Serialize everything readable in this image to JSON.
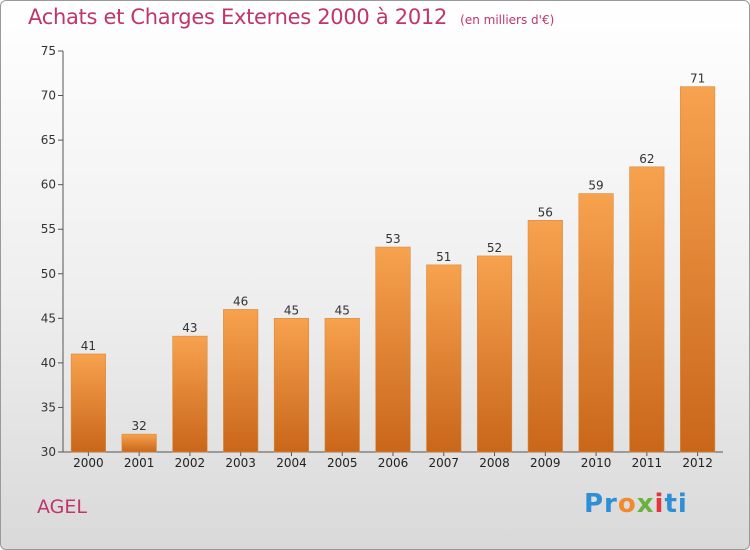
{
  "header": {
    "title": "Achats et Charges Externes 2000 à 2012",
    "unit": "(en milliers d'€)"
  },
  "footer": {
    "commune": "AGEL",
    "logo": [
      "Pr",
      "o",
      "x",
      "i",
      "ti"
    ]
  },
  "colors": {
    "bar_light": "#f7a24e",
    "bar_dark": "#c9661a",
    "title": "#c0356b"
  },
  "chart_data": {
    "type": "bar",
    "title": "Achats et Charges Externes 2000 à 2012",
    "subtitle": "(en milliers d'€)",
    "categories": [
      "2000",
      "2001",
      "2002",
      "2003",
      "2004",
      "2005",
      "2006",
      "2007",
      "2008",
      "2009",
      "2010",
      "2011",
      "2012"
    ],
    "values": [
      41,
      32,
      43,
      46,
      45,
      45,
      53,
      51,
      52,
      56,
      59,
      62,
      71
    ],
    "ylim": [
      30,
      75
    ],
    "yticks": [
      30,
      35,
      40,
      45,
      50,
      55,
      60,
      65,
      70,
      75
    ],
    "grid": false,
    "data_labels": true
  }
}
